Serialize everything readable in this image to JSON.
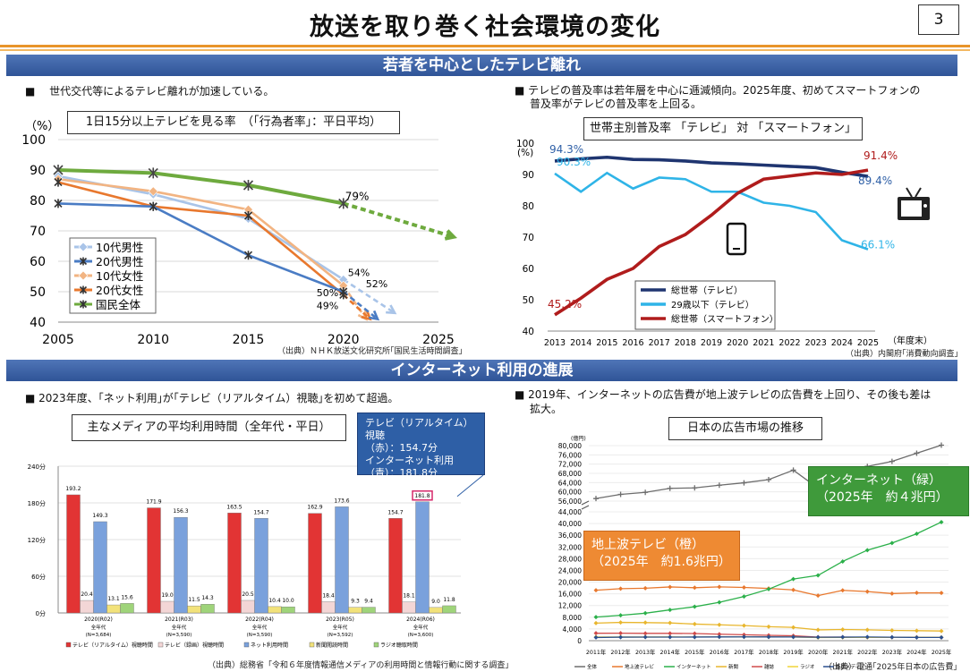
{
  "header": {
    "title": "放送を取り巻く社会環境の変化",
    "page_number": "3"
  },
  "section1": {
    "title": "若者を中心としたテレビ離れ"
  },
  "section2": {
    "title": "インターネット利用の進展"
  },
  "bullets": {
    "b1": "■　 世代交代等によるテレビ離れが加速している。",
    "b2_line1": "■ テレビの普及率は若年層を中心に逓減傾向。2025年度、初めてスマートフォンの",
    "b2_line2": "普及率がテレビの普及率を上回る。",
    "b3": "■ 2023年度、｢ネット利用｣が｢テレビ（リアルタイム）視聴｣を初めて超過。",
    "b4_line1": "■ 2019年、インターネットの広告費が地上波テレビの広告費を上回り、その後も差は",
    "b4_line2": "拡大。"
  },
  "callouts": {
    "usage_line1": "テレビ（リアルタイム）視聴",
    "usage_line2": "（赤）：154.7分",
    "usage_line3": "インターネット利用",
    "usage_line4": "（青）：181.8分",
    "internet_line1": "インターネット（緑）",
    "internet_line2": "（2025年　約４兆円）",
    "tv_line1": "地上波テレビ（橙）",
    "tv_line2": "（2025年　約1.6兆円）"
  },
  "colors": {
    "band": "#2f5497",
    "accent": "#e8942a",
    "green_callout": "#3f9a3b",
    "orange_callout": "#ee8a33",
    "blue_callout": "#2e5fa6"
  },
  "chart_data": [
    {
      "type": "line",
      "title": "1日15分以上テレビを見る率　（｢行為者率｣：平日平均）",
      "ylabel": "（%）",
      "x": [
        2005,
        2010,
        2015,
        2020,
        2025
      ],
      "ylim": [
        40,
        100
      ],
      "yticks": [
        40,
        50,
        60,
        70,
        80,
        90,
        100
      ],
      "grid": true,
      "legend_position": "bottom-left",
      "series": [
        {
          "name": "10代男性",
          "color": "#a9c4e8",
          "marker": "diamond",
          "x": [
            2005,
            2010,
            2015,
            2020
          ],
          "values": [
            88,
            82,
            74,
            54
          ],
          "projection_end": [
            2022.7,
            43
          ]
        },
        {
          "name": "20代男性",
          "color": "#4a7cc4",
          "marker": "star",
          "x": [
            2005,
            2010,
            2015,
            2020
          ],
          "values": [
            79,
            78,
            62,
            50
          ],
          "projection_end": [
            2021.8,
            41
          ]
        },
        {
          "name": "10代女性",
          "color": "#f2b482",
          "marker": "diamond",
          "x": [
            2005,
            2010,
            2015,
            2020
          ],
          "values": [
            87,
            83,
            77,
            52
          ],
          "projection_end": [
            2021.2,
            41
          ]
        },
        {
          "name": "20代女性",
          "color": "#e8782e",
          "marker": "star",
          "x": [
            2005,
            2010,
            2015,
            2020
          ],
          "values": [
            86,
            78,
            75,
            49
          ],
          "projection_end": [
            2021.4,
            41
          ]
        },
        {
          "name": "国民全体",
          "color": "#6eaa3e",
          "marker": "x",
          "x": [
            2005,
            2010,
            2015,
            2020
          ],
          "values": [
            90,
            89,
            85,
            79
          ],
          "projection_end": [
            2025.8,
            68
          ]
        }
      ],
      "annotations": [
        "79%",
        "54%",
        "52%",
        "50%",
        "49%"
      ],
      "source": "（出典）ＮＨＫ放送文化研究所｢国民生活時間調査｣"
    },
    {
      "type": "line",
      "title": "世帯主別普及率 「テレビ」 対 「スマートフォン」",
      "ylabel": "(%)",
      "xlabel": "（年度末）",
      "x": [
        2013,
        2014,
        2015,
        2016,
        2017,
        2018,
        2019,
        2020,
        2021,
        2022,
        2023,
        2024,
        2025
      ],
      "ylim": [
        40,
        100
      ],
      "yticks": [
        40,
        50,
        60,
        70,
        80,
        90,
        100
      ],
      "series": [
        {
          "name": "総世帯（テレビ）",
          "color": "#1f3570",
          "values": [
            94.3,
            95.0,
            95.5,
            94.8,
            94.7,
            94.3,
            93.7,
            93.4,
            93.0,
            92.6,
            92.2,
            90.7,
            89.4
          ]
        },
        {
          "name": "29歳以下（テレビ）",
          "color": "#2fb4e7",
          "values": [
            90.3,
            84.5,
            90.5,
            85.5,
            89.0,
            88.5,
            84.5,
            84.5,
            81.0,
            80.0,
            78.0,
            69.0,
            66.1
          ]
        },
        {
          "name": "総世帯（スマートフォン）",
          "color": "#b01c1c",
          "values": [
            45.2,
            50.5,
            56.5,
            60.0,
            67.0,
            70.8,
            77.0,
            84.0,
            88.5,
            89.5,
            90.5,
            90.0,
            91.4
          ]
        }
      ],
      "annotations": [
        "94.3%",
        "90.3%",
        "45.2%",
        "91.4%",
        "89.4%",
        "66.1%"
      ],
      "source": "（出典）内閣府｢消費動向調査｣"
    },
    {
      "type": "bar",
      "title": "主なメディアの平均利用時間（全年代・平日）",
      "categories": [
        "2020(R02)",
        "2021(R03)",
        "2022(R04)",
        "2023(R05)",
        "2024(R06)"
      ],
      "category_sub": [
        "全年代\n(N=3,684)",
        "全年代\n(N=3,590)",
        "全年代\n(N=3,590)",
        "全年代\n(N=3,592)",
        "全年代\n(N=3,600)"
      ],
      "ylim": [
        0,
        240
      ],
      "ytick_labels": [
        "0分",
        "60分",
        "120分",
        "180分",
        "240分"
      ],
      "series": [
        {
          "name": "テレビ（リアルタイム）視聴時間",
          "color": "#e23434",
          "values": [
            193.2,
            171.9,
            163.5,
            162.9,
            154.7
          ]
        },
        {
          "name": "テレビ（録画）視聴時間",
          "color": "#f3d6d6",
          "values": [
            20.4,
            19.0,
            20.5,
            18.4,
            18.1
          ]
        },
        {
          "name": "ネット利用時間",
          "color": "#7aa1dc",
          "values": [
            149.3,
            156.3,
            154.7,
            173.6,
            181.8
          ]
        },
        {
          "name": "新聞閲読時間",
          "color": "#f2e27a",
          "values": [
            13.1,
            11.5,
            10.4,
            9.3,
            9.0
          ]
        },
        {
          "name": "ラジオ聴取時間",
          "color": "#9fd47a",
          "values": [
            15.6,
            14.3,
            10.0,
            9.4,
            11.8
          ]
        }
      ],
      "source": "（出典）総務省「令和６年度情報通信メディアの利用時間と情報行動に関する調査」"
    },
    {
      "type": "line",
      "title": "日本の広告市場の推移",
      "ylabel": "(億円)",
      "x": [
        "2011年",
        "2012年",
        "2013年",
        "2014年",
        "2015年",
        "2016年",
        "2017年",
        "2018年",
        "2019年",
        "2020年",
        "2021年",
        "2022年",
        "2023年",
        "2024年",
        "2025年"
      ],
      "axis_break": [
        44000,
        56000
      ],
      "yticks": [
        "0",
        "4,000",
        "8,000",
        "12,000",
        "16,000",
        "20,000",
        "24,000",
        "28,000",
        "32,000",
        "36,000",
        "40,000",
        "44,000",
        "56,000",
        "60,000",
        "64,000",
        "68,000",
        "72,000",
        "76,000",
        "80,000"
      ],
      "series": [
        {
          "name": "全体",
          "color": "#6d6d6d",
          "values": [
            57096,
            58913,
            59762,
            61522,
            61710,
            62880,
            63907,
            65300,
            69381,
            61594,
            67998,
            71021,
            73167,
            76730,
            80200
          ]
        },
        {
          "name": "地上波テレビ",
          "color": "#e8782e",
          "values": [
            17237,
            17757,
            17913,
            18347,
            18088,
            18374,
            18178,
            17848,
            17345,
            15386,
            17184,
            16768,
            16095,
            16351,
            16300
          ]
        },
        {
          "name": "インターネット",
          "color": "#2bb04a",
          "values": [
            8062,
            8680,
            9381,
            10519,
            11594,
            13100,
            15094,
            17589,
            21048,
            22290,
            27052,
            30912,
            33330,
            36517,
            40500
          ]
        },
        {
          "name": "新聞",
          "color": "#e8b62e",
          "values": [
            5990,
            6242,
            6170,
            6057,
            5679,
            5431,
            5147,
            4784,
            4547,
            3688,
            3815,
            3697,
            3512,
            3417,
            3300
          ]
        },
        {
          "name": "雑誌",
          "color": "#d04a4a",
          "values": [
            2542,
            2551,
            2499,
            2500,
            2443,
            2223,
            2023,
            1841,
            1675,
            1223,
            1224,
            1140,
            1163,
            1179,
            1100
          ]
        },
        {
          "name": "ラジオ",
          "color": "#f0d438",
          "values": [
            1247,
            1246,
            1243,
            1272,
            1254,
            1285,
            1290,
            1278,
            1260,
            1066,
            1106,
            1129,
            1139,
            1158,
            1150
          ]
        },
        {
          "name": "衛星メディア",
          "color": "#2a4f8f",
          "values": [
            1096,
            1201,
            1221,
            1217,
            1235,
            1283,
            1300,
            1275,
            1267,
            1173,
            1209,
            1251,
            1173,
            1114,
            1100
          ]
        }
      ],
      "source": "（出典）電通｢2025年日本の広告費｣"
    }
  ]
}
